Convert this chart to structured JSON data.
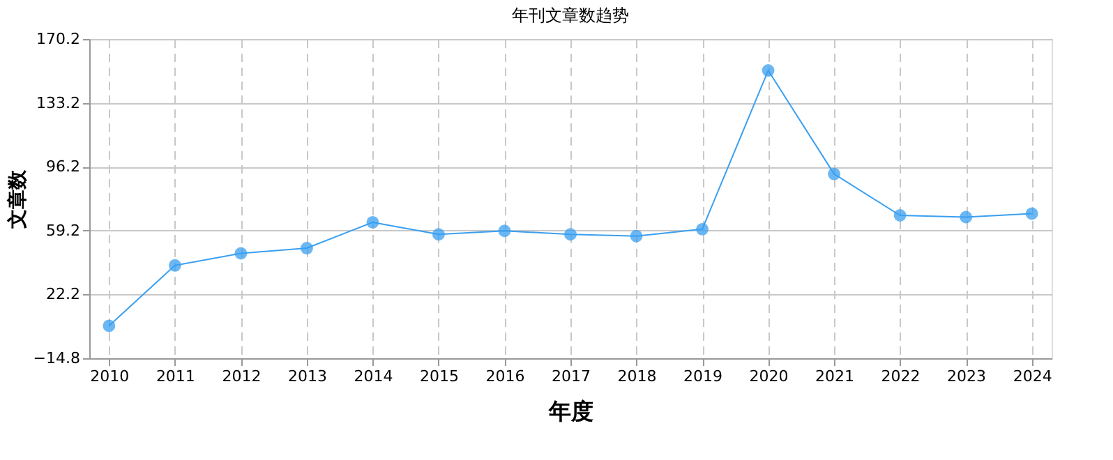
{
  "chart_data": {
    "type": "line",
    "title": "年刊文章数趋势",
    "xlabel": "年度",
    "ylabel": "文章数",
    "categories": [
      "2010",
      "2011",
      "2012",
      "2013",
      "2014",
      "2015",
      "2016",
      "2017",
      "2018",
      "2019",
      "2020",
      "2021",
      "2022",
      "2023",
      "2024"
    ],
    "series": [
      {
        "color": "#3a9ff0",
        "values": [
          4,
          39,
          46,
          49,
          64,
          57,
          59,
          57,
          56,
          60,
          152,
          92,
          68,
          67,
          69
        ]
      }
    ],
    "ylim": [
      -14.8,
      170.2
    ],
    "yticks": [
      -14.8,
      22.2,
      59.2,
      96.2,
      133.2,
      170.2
    ],
    "grid": true,
    "marker": "circle",
    "line_style": "solid"
  }
}
